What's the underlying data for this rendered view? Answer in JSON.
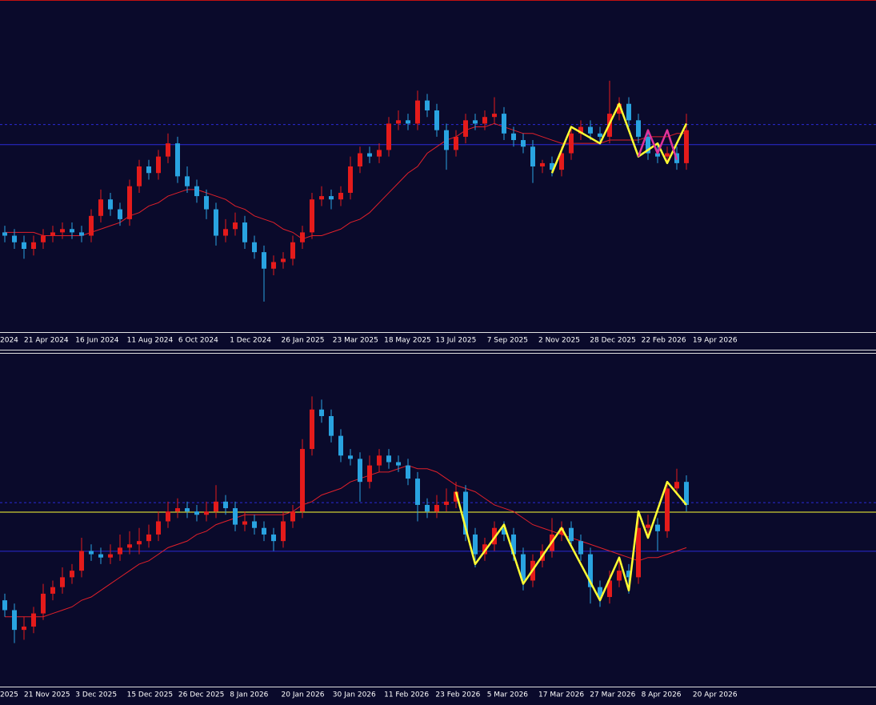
{
  "chart_data": [
    {
      "type": "candlestick",
      "ylim": [
        0,
        100
      ],
      "up_color": "#e41b1b",
      "down_color": "#29a3e0",
      "x_labels": [
        "2024",
        "21 Apr 2024",
        "16 Jun 2024",
        "11 Aug 2024",
        "6 Oct 2024",
        "1 Dec 2024",
        "26 Jan 2025",
        "23 Mar 2025",
        "18 May 2025",
        "13 Jul 2025",
        "7 Sep 2025",
        "2 Nov 2025",
        "28 Dec 2025",
        "22 Feb 2026",
        "19 Apr 2026"
      ],
      "candles": [
        [
          30,
          32,
          27,
          29
        ],
        [
          29,
          31,
          25,
          27
        ],
        [
          27,
          29,
          22,
          25
        ],
        [
          25,
          29,
          23,
          27
        ],
        [
          27,
          31,
          25,
          29
        ],
        [
          29,
          32,
          27,
          30
        ],
        [
          30,
          33,
          28,
          31
        ],
        [
          31,
          33,
          28,
          30
        ],
        [
          30,
          32,
          27,
          29
        ],
        [
          29,
          37,
          27,
          35
        ],
        [
          35,
          43,
          33,
          40
        ],
        [
          40,
          42,
          35,
          37
        ],
        [
          37,
          39,
          32,
          34
        ],
        [
          34,
          46,
          32,
          44
        ],
        [
          44,
          52,
          42,
          50
        ],
        [
          50,
          52,
          46,
          48
        ],
        [
          48,
          55,
          46,
          53
        ],
        [
          53,
          60,
          51,
          57
        ],
        [
          57,
          59,
          45,
          47
        ],
        [
          47,
          50,
          42,
          44
        ],
        [
          44,
          46,
          39,
          41
        ],
        [
          41,
          43,
          34,
          37
        ],
        [
          37,
          39,
          26,
          29
        ],
        [
          29,
          34,
          27,
          31
        ],
        [
          31,
          36,
          29,
          33
        ],
        [
          33,
          35,
          25,
          27
        ],
        [
          27,
          29,
          22,
          24
        ],
        [
          24,
          26,
          9,
          19
        ],
        [
          19,
          23,
          17,
          21
        ],
        [
          21,
          24,
          19,
          22
        ],
        [
          22,
          29,
          20,
          27
        ],
        [
          27,
          32,
          25,
          30
        ],
        [
          30,
          42,
          28,
          40
        ],
        [
          40,
          44,
          38,
          41
        ],
        [
          41,
          43,
          37,
          40
        ],
        [
          40,
          44,
          38,
          42
        ],
        [
          42,
          53,
          40,
          50
        ],
        [
          50,
          56,
          48,
          54
        ],
        [
          54,
          56,
          51,
          53
        ],
        [
          53,
          57,
          51,
          55
        ],
        [
          55,
          65,
          53,
          63
        ],
        [
          63,
          67,
          61,
          64
        ],
        [
          64,
          66,
          61,
          63
        ],
        [
          63,
          73,
          61,
          70
        ],
        [
          70,
          72,
          65,
          67
        ],
        [
          67,
          69,
          59,
          61
        ],
        [
          61,
          63,
          49,
          55
        ],
        [
          55,
          61,
          53,
          59
        ],
        [
          59,
          66,
          57,
          64
        ],
        [
          64,
          66,
          61,
          63
        ],
        [
          63,
          67,
          61,
          65
        ],
        [
          65,
          71,
          63,
          66
        ],
        [
          66,
          68,
          58,
          60
        ],
        [
          60,
          62,
          56,
          58
        ],
        [
          58,
          60,
          54,
          56
        ],
        [
          56,
          58,
          45,
          50
        ],
        [
          50,
          52,
          48,
          51
        ],
        [
          51,
          53,
          47,
          49
        ],
        [
          49,
          56,
          47,
          54
        ],
        [
          54,
          62,
          52,
          60
        ],
        [
          60,
          64,
          58,
          62
        ],
        [
          62,
          64,
          58,
          60
        ],
        [
          60,
          62,
          57,
          59
        ],
        [
          59,
          76,
          57,
          66
        ],
        [
          66,
          71,
          64,
          69
        ],
        [
          69,
          71,
          62,
          64
        ],
        [
          64,
          66,
          57,
          59
        ],
        [
          59,
          61,
          52,
          54
        ],
        [
          54,
          57,
          51,
          53
        ],
        [
          53,
          56,
          51,
          54
        ],
        [
          54,
          56,
          49,
          51
        ],
        [
          51,
          66,
          49,
          61
        ]
      ],
      "ma": {
        "color": "#e0202a",
        "values": [
          30,
          30,
          30,
          30,
          29,
          29,
          29,
          29,
          29,
          30,
          31,
          32,
          33,
          35,
          36,
          38,
          39,
          41,
          42,
          43,
          43,
          42,
          41,
          40,
          38,
          37,
          35,
          34,
          33,
          31,
          30,
          28,
          29,
          29,
          30,
          31,
          33,
          34,
          36,
          39,
          42,
          45,
          48,
          50,
          54,
          56,
          58,
          59,
          61,
          62,
          62,
          63,
          62,
          61,
          60,
          60,
          59,
          58,
          57,
          57,
          57,
          57,
          57,
          58,
          58,
          58,
          58,
          59,
          59,
          59,
          60,
          60
        ]
      },
      "zigzags": [
        {
          "color": "#ffff33",
          "x": [
            57,
            59,
            62,
            64,
            66,
            68,
            69,
            71
          ],
          "values": [
            48,
            62,
            57,
            69,
            53,
            57,
            51,
            63
          ]
        },
        {
          "color": "#e0339a",
          "x": [
            66,
            67,
            68,
            69,
            70
          ],
          "values": [
            53,
            61,
            54,
            61,
            52
          ]
        }
      ],
      "hlines": [
        {
          "value": 62.7,
          "color": "#2b2bd6",
          "dash": true
        },
        {
          "value": 56.6,
          "color": "#2b2bd6",
          "dash": false
        }
      ]
    },
    {
      "type": "candlestick",
      "ylim": [
        0,
        100
      ],
      "up_color": "#e41b1b",
      "down_color": "#29a3e0",
      "x_labels": [
        "2025",
        "21 Nov 2025",
        "3 Dec 2025",
        "15 Dec 2025",
        "26 Dec 2025",
        "8 Jan 2026",
        "20 Jan 2026",
        "30 Jan 2026",
        "11 Feb 2026",
        "23 Feb 2026",
        "5 Mar 2026",
        "17 Mar 2026",
        "27 Mar 2026",
        "8 Apr 2026",
        "20 Apr 2026"
      ],
      "candles": [
        [
          26,
          28,
          21,
          23
        ],
        [
          23,
          25,
          13,
          17
        ],
        [
          17,
          21,
          14,
          18
        ],
        [
          18,
          24,
          16,
          22
        ],
        [
          22,
          31,
          20,
          28
        ],
        [
          28,
          32,
          26,
          30
        ],
        [
          30,
          36,
          28,
          33
        ],
        [
          33,
          37,
          31,
          35
        ],
        [
          35,
          45,
          33,
          41
        ],
        [
          41,
          43,
          38,
          40
        ],
        [
          40,
          42,
          37,
          39
        ],
        [
          39,
          43,
          37,
          40
        ],
        [
          40,
          46,
          38,
          42
        ],
        [
          42,
          47,
          40,
          43
        ],
        [
          43,
          48,
          40,
          44
        ],
        [
          44,
          49,
          42,
          46
        ],
        [
          46,
          53,
          44,
          50
        ],
        [
          50,
          56,
          48,
          53
        ],
        [
          53,
          57,
          51,
          54
        ],
        [
          54,
          56,
          51,
          53
        ],
        [
          53,
          55,
          50,
          52
        ],
        [
          52,
          56,
          50,
          53
        ],
        [
          53,
          61,
          51,
          56
        ],
        [
          56,
          58,
          52,
          54
        ],
        [
          54,
          56,
          47,
          49
        ],
        [
          49,
          53,
          47,
          50
        ],
        [
          50,
          52,
          46,
          48
        ],
        [
          48,
          50,
          44,
          46
        ],
        [
          46,
          48,
          41,
          44
        ],
        [
          44,
          53,
          42,
          50
        ],
        [
          50,
          55,
          48,
          53
        ],
        [
          53,
          75,
          51,
          72
        ],
        [
          72,
          88,
          70,
          84
        ],
        [
          84,
          87,
          80,
          82
        ],
        [
          82,
          84,
          74,
          76
        ],
        [
          76,
          78,
          68,
          70
        ],
        [
          70,
          72,
          67,
          69
        ],
        [
          69,
          71,
          56,
          62
        ],
        [
          62,
          70,
          60,
          67
        ],
        [
          67,
          72,
          65,
          70
        ],
        [
          70,
          72,
          66,
          68
        ],
        [
          68,
          70,
          65,
          67
        ],
        [
          67,
          69,
          61,
          63
        ],
        [
          63,
          65,
          50,
          55
        ],
        [
          55,
          57,
          51,
          53
        ],
        [
          53,
          58,
          51,
          55
        ],
        [
          55,
          60,
          53,
          56
        ],
        [
          56,
          62,
          54,
          59
        ],
        [
          59,
          61,
          44,
          46
        ],
        [
          46,
          48,
          36,
          40
        ],
        [
          40,
          45,
          38,
          43
        ],
        [
          43,
          50,
          41,
          48
        ],
        [
          48,
          50,
          44,
          46
        ],
        [
          46,
          48,
          38,
          40
        ],
        [
          40,
          42,
          29,
          32
        ],
        [
          32,
          40,
          30,
          38
        ],
        [
          38,
          43,
          36,
          41
        ],
        [
          41,
          51,
          39,
          46
        ],
        [
          46,
          50,
          44,
          48
        ],
        [
          48,
          50,
          42,
          44
        ],
        [
          44,
          46,
          38,
          40
        ],
        [
          40,
          42,
          25,
          30
        ],
        [
          30,
          32,
          24,
          27
        ],
        [
          27,
          35,
          25,
          32
        ],
        [
          32,
          38,
          30,
          35
        ],
        [
          35,
          37,
          28,
          33
        ],
        [
          33,
          51,
          31,
          48
        ],
        [
          48,
          52,
          45,
          49
        ],
        [
          49,
          51,
          41,
          47
        ],
        [
          47,
          62,
          45,
          60
        ],
        [
          60,
          66,
          58,
          62
        ],
        [
          62,
          64,
          53,
          55
        ]
      ],
      "ma": {
        "color": "#e0202a",
        "values": [
          21,
          21,
          21,
          21,
          21,
          22,
          23,
          24,
          26,
          27,
          29,
          31,
          33,
          35,
          37,
          38,
          40,
          42,
          43,
          44,
          46,
          47,
          49,
          50,
          51,
          52,
          52,
          52,
          52,
          52,
          53,
          55,
          56,
          58,
          59,
          60,
          62,
          63,
          64,
          65,
          65,
          66,
          67,
          66,
          66,
          65,
          63,
          61,
          60,
          59,
          57,
          55,
          54,
          53,
          51,
          49,
          48,
          47,
          46,
          45,
          44,
          43,
          42,
          41,
          40,
          39,
          38,
          39,
          39,
          40,
          41,
          42
        ]
      },
      "zigzags": [
        {
          "color": "#ffff33",
          "x": [
            47,
            49,
            52,
            54,
            58,
            62,
            64,
            65,
            66,
            67,
            69,
            71
          ],
          "values": [
            59,
            37,
            49,
            31,
            48,
            26,
            39,
            29,
            53,
            45,
            62,
            55
          ]
        }
      ],
      "hlines": [
        {
          "value": 55.7,
          "color": "#2b2bd6",
          "dash": true
        },
        {
          "value": 52.8,
          "color": "#ffff33",
          "dash": false
        },
        {
          "value": 40.9,
          "color": "#2b2bd6",
          "dash": false
        }
      ]
    }
  ]
}
